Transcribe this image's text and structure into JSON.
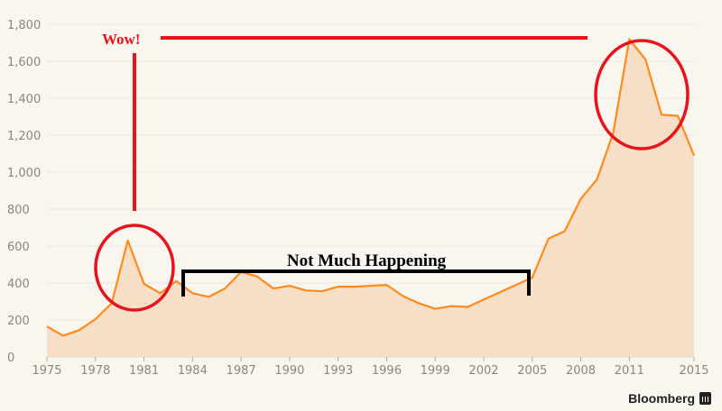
{
  "chart_data": {
    "type": "area",
    "title": "",
    "xlabel": "",
    "ylabel": "",
    "x": [
      1975,
      1976,
      1977,
      1978,
      1979,
      1980,
      1981,
      1982,
      1983,
      1984,
      1985,
      1986,
      1987,
      1988,
      1989,
      1990,
      1991,
      1992,
      1993,
      1994,
      1995,
      1996,
      1997,
      1998,
      1999,
      2000,
      2001,
      2002,
      2003,
      2004,
      2005,
      2006,
      2007,
      2008,
      2009,
      2010,
      2011,
      2012,
      2013,
      2014,
      2015
    ],
    "values": [
      165,
      115,
      145,
      205,
      290,
      630,
      395,
      345,
      410,
      345,
      325,
      370,
      460,
      435,
      370,
      385,
      360,
      355,
      380,
      380,
      385,
      390,
      330,
      290,
      260,
      275,
      270,
      310,
      350,
      390,
      430,
      640,
      680,
      855,
      960,
      1210,
      1720,
      1610,
      1310,
      1305,
      1090
    ],
    "xlim": [
      1975,
      2015
    ],
    "ylim": [
      0,
      1800
    ],
    "x_ticks": [
      "1975",
      "1978",
      "1981",
      "1984",
      "1987",
      "1990",
      "1993",
      "1996",
      "1999",
      "2002",
      "2005",
      "2008",
      "2011",
      "2015"
    ],
    "y_ticks": [
      "0",
      "200",
      "400",
      "600",
      "800",
      "1,000",
      "1,200",
      "1,400",
      "1,600",
      "1,800"
    ],
    "grid": true,
    "colors": {
      "line": "#ff8a1c",
      "fill": "#f6dfc6",
      "annotation_red": "#e8141c",
      "annotation_black": "#000000"
    },
    "annotations": {
      "wow": "Wow!",
      "flat": "Not Much Happening"
    }
  },
  "branding": {
    "source": "Bloomberg"
  }
}
